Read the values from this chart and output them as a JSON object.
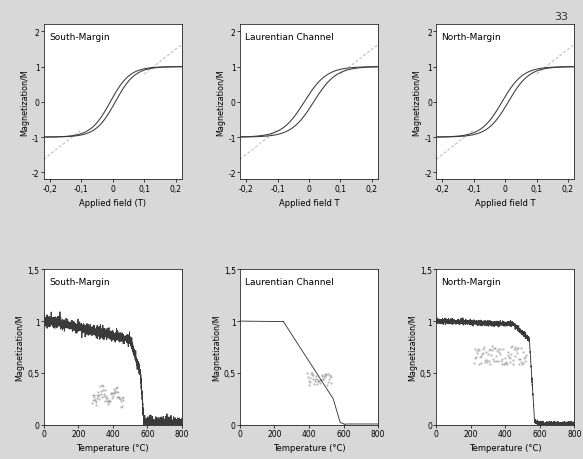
{
  "top_row_titles": [
    "South-Margin",
    "Laurentian Channel",
    "North-Margin"
  ],
  "bottom_row_titles": [
    "South-Margin",
    "Laurentian Channel",
    "North-Margin"
  ],
  "hysteresis_xlabels": [
    "Applied field (T)",
    "Applied field T",
    "Applied field T"
  ],
  "hysteresis_ylabel": "Magnetization/M",
  "thermo_xlabel": "Temperature (°C)",
  "thermo_ylabel": "Magnetization/M",
  "hysteresis_xlim": [
    -0.22,
    0.22
  ],
  "hysteresis_ylim": [
    -2.2,
    2.2
  ],
  "hysteresis_yticks": [
    -2,
    -1,
    0,
    1,
    2
  ],
  "hysteresis_xticks": [
    -0.2,
    -0.1,
    0,
    0.1,
    0.2
  ],
  "hysteresis_xticklabels": [
    "-0,2",
    "-0,1",
    "0",
    "0,1",
    "0,2"
  ],
  "hysteresis_yticklabels": [
    "-2",
    "-1",
    "0",
    "1",
    "2"
  ],
  "thermo_xlim": [
    0,
    800
  ],
  "thermo_ylim": [
    0,
    1.5
  ],
  "thermo_xticks": [
    0,
    200,
    400,
    600,
    800
  ],
  "thermo_yticks": [
    0,
    0.5,
    1,
    1.5
  ],
  "thermo_xticklabels": [
    "0",
    "200",
    "400",
    "600",
    "800"
  ],
  "thermo_yticklabels": [
    "0",
    "0,5",
    "1",
    "1,5"
  ],
  "page_number": "33",
  "line_color_dark": "#3a3a3a",
  "line_color_grey": "#a0a0a0",
  "line_color_dashed_hysteresis": "#b8b8b8",
  "fig_bg": "#d8d8d8"
}
